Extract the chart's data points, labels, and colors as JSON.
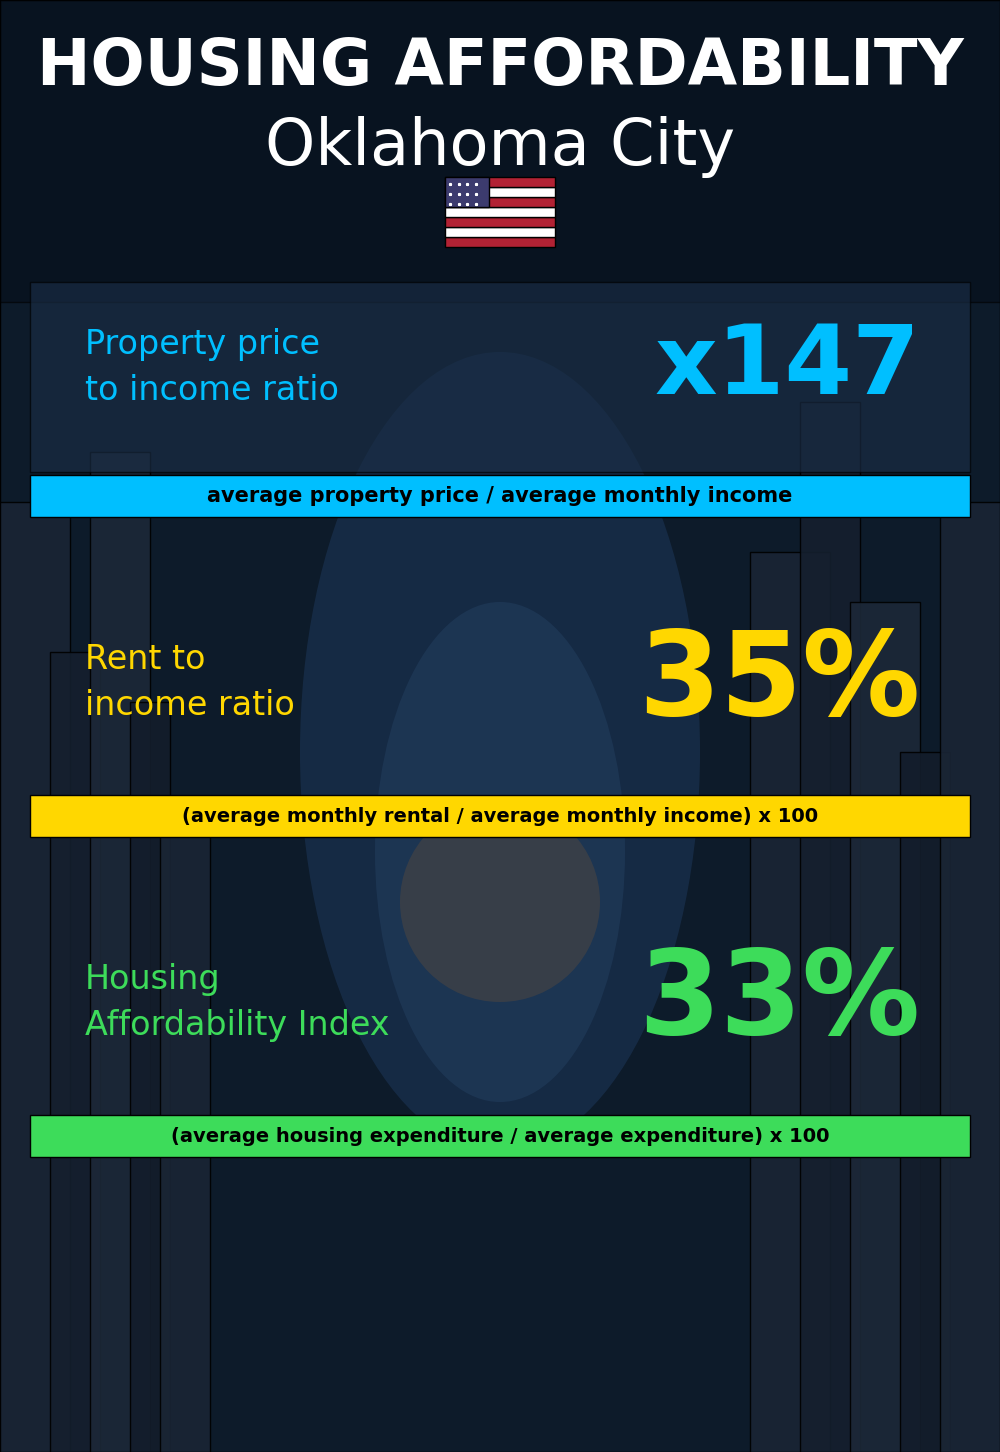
{
  "title_line1": "HOUSING AFFORDABILITY",
  "title_line2": "Oklahoma City",
  "section1_label": "Property price\nto income ratio",
  "section1_value": "x147",
  "section1_label_color": "#00BFFF",
  "section1_value_color": "#00BFFF",
  "section1_formula": "average property price / average monthly income",
  "section1_formula_bg": "#00BFFF",
  "section2_label": "Rent to\nincome ratio",
  "section2_value": "35%",
  "section2_label_color": "#FFD700",
  "section2_value_color": "#FFD700",
  "section2_formula": "(average monthly rental / average monthly income) x 100",
  "section2_formula_bg": "#FFD700",
  "section3_label": "Housing\nAffordability Index",
  "section3_value": "33%",
  "section3_label_color": "#3DDC5A",
  "section3_value_color": "#3DDC5A",
  "section3_formula": "(average housing expenditure / average expenditure) x 100",
  "section3_formula_bg": "#3DDC5A",
  "bg_color": "#0d1b2a",
  "title1_color": "#FFFFFF",
  "title2_color": "#FFFFFF"
}
